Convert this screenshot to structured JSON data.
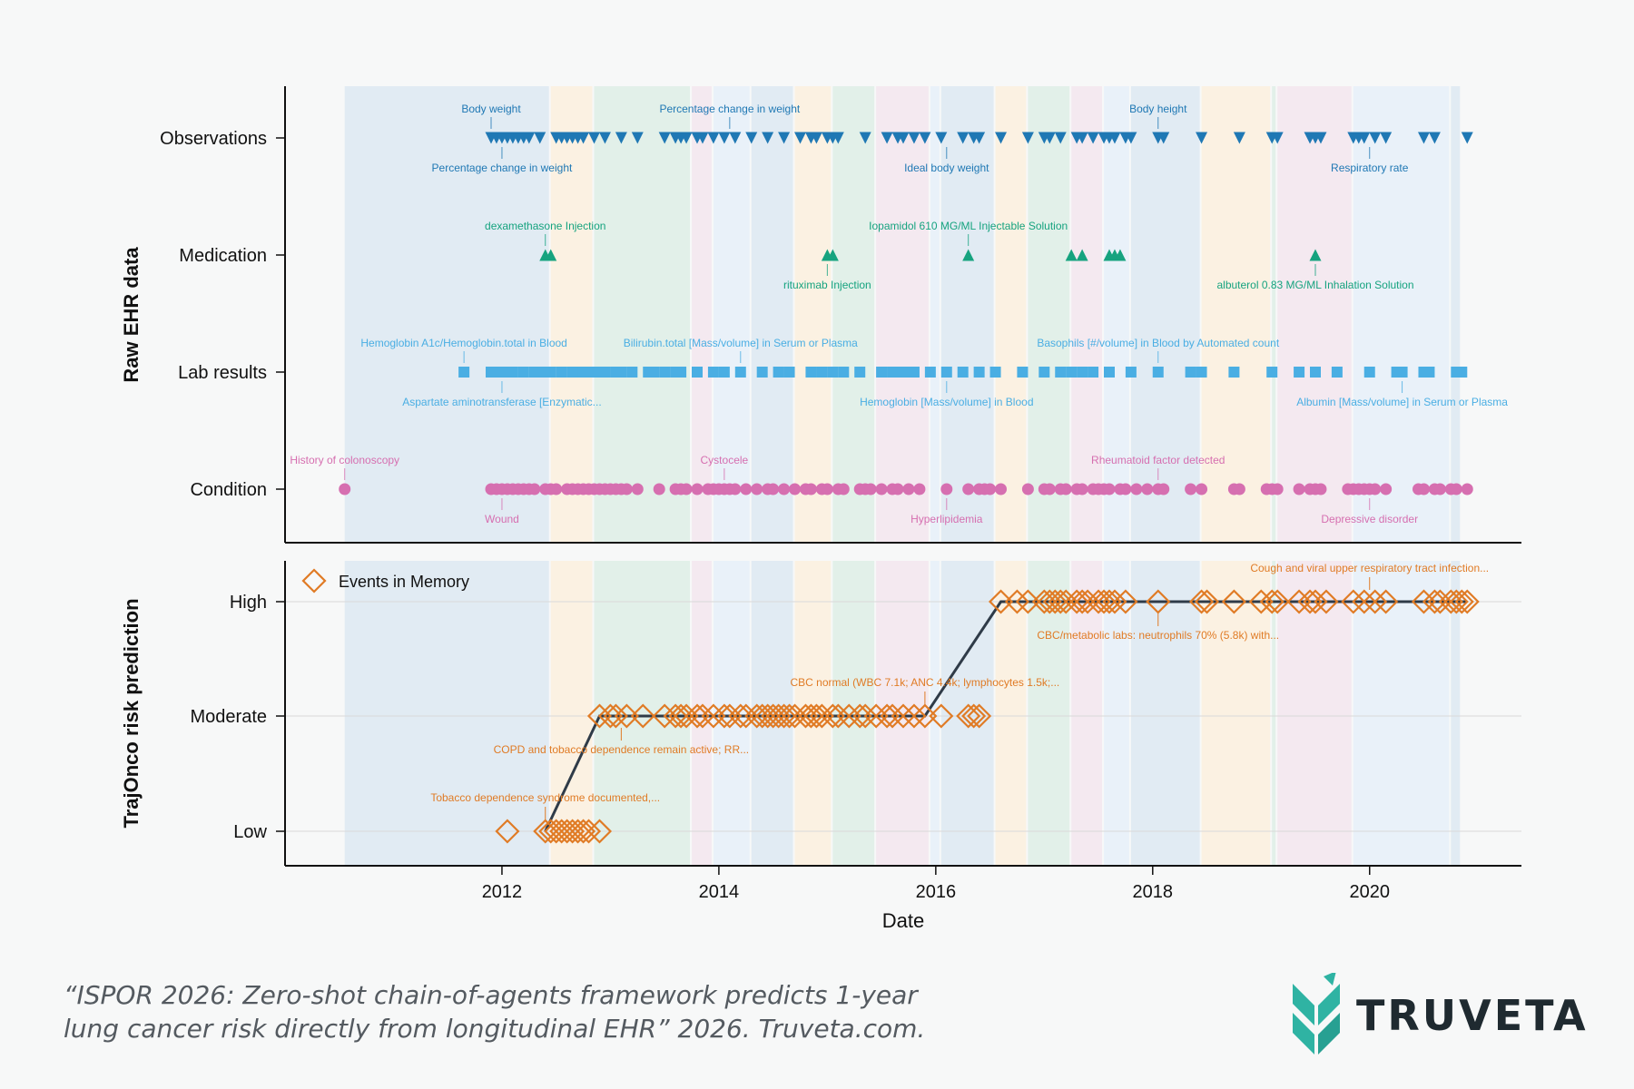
{
  "chart_data": {
    "type": "scatter",
    "xlabel": "Date",
    "x_ticks": [
      "2012",
      "2014",
      "2016",
      "2018",
      "2020"
    ],
    "xlim": [
      2010.0,
      2021.4
    ],
    "background_colors": [
      "#dde9f2",
      "#fbf0de",
      "#deefe6",
      "#f3e6ee",
      "#e6f0f9"
    ],
    "panels": [
      {
        "id": "raw",
        "ylabel": "Raw EHR data",
        "rows": [
          {
            "name": "Observations",
            "marker": "triangle-down",
            "color": "#1f78b4",
            "x": [
              2011.9,
              2011.95,
              2012.0,
              2012.05,
              2012.1,
              2012.15,
              2012.2,
              2012.25,
              2012.35,
              2012.5,
              2012.55,
              2012.6,
              2012.65,
              2012.7,
              2012.75,
              2012.85,
              2012.95,
              2013.1,
              2013.25,
              2013.5,
              2013.6,
              2013.65,
              2013.7,
              2013.8,
              2013.85,
              2013.95,
              2014.05,
              2014.15,
              2014.3,
              2014.45,
              2014.6,
              2014.75,
              2014.85,
              2014.9,
              2015.0,
              2015.05,
              2015.1,
              2015.35,
              2015.55,
              2015.65,
              2015.7,
              2015.8,
              2015.9,
              2016.05,
              2016.25,
              2016.35,
              2016.4,
              2016.6,
              2016.85,
              2017.0,
              2017.05,
              2017.15,
              2017.3,
              2017.35,
              2017.45,
              2017.55,
              2017.6,
              2017.65,
              2017.75,
              2017.8,
              2018.05,
              2018.1,
              2018.45,
              2018.8,
              2019.1,
              2019.15,
              2019.45,
              2019.5,
              2019.55,
              2019.85,
              2019.9,
              2019.95,
              2020.05,
              2020.15,
              2020.5,
              2020.6,
              2020.9
            ],
            "labels_above": [
              {
                "x": 2011.9,
                "text": "Body weight"
              },
              {
                "x": 2014.1,
                "text": "Percentage change in weight"
              },
              {
                "x": 2018.05,
                "text": "Body height"
              }
            ],
            "labels_below": [
              {
                "x": 2012.0,
                "text": "Percentage change in weight"
              },
              {
                "x": 2016.1,
                "text": "Ideal body weight"
              },
              {
                "x": 2020.0,
                "text": "Respiratory rate"
              }
            ]
          },
          {
            "name": "Medication",
            "marker": "triangle-up",
            "color": "#16a37f",
            "x": [
              2012.4,
              2012.45,
              2015.0,
              2015.05,
              2016.3,
              2017.25,
              2017.35,
              2017.6,
              2017.65,
              2017.7,
              2019.5
            ],
            "labels_above": [
              {
                "x": 2012.4,
                "text": "dexamethasone Injection"
              },
              {
                "x": 2016.3,
                "text": "Iopamidol 610 MG/ML Injectable Solution"
              }
            ],
            "labels_below": [
              {
                "x": 2015.0,
                "text": "rituximab Injection"
              },
              {
                "x": 2019.5,
                "text": "albuterol 0.83 MG/ML Inhalation Solution"
              }
            ]
          },
          {
            "name": "Lab results",
            "marker": "square",
            "color": "#4aaee3",
            "x": [
              2011.65,
              2011.9,
              2011.95,
              2012.0,
              2012.05,
              2012.1,
              2012.2,
              2012.3,
              2012.35,
              2012.4,
              2012.45,
              2012.55,
              2012.65,
              2012.7,
              2012.75,
              2012.85,
              2012.95,
              2013.05,
              2013.1,
              2013.2,
              2013.35,
              2013.4,
              2013.5,
              2013.6,
              2013.65,
              2013.8,
              2013.95,
              2014.05,
              2014.2,
              2014.4,
              2014.55,
              2014.65,
              2014.85,
              2014.95,
              2015.05,
              2015.15,
              2015.3,
              2015.5,
              2015.6,
              2015.7,
              2015.8,
              2015.95,
              2016.1,
              2016.25,
              2016.4,
              2016.55,
              2016.8,
              2017.0,
              2017.15,
              2017.25,
              2017.35,
              2017.45,
              2017.6,
              2017.8,
              2018.05,
              2018.35,
              2018.45,
              2018.75,
              2019.1,
              2019.35,
              2019.5,
              2019.7,
              2020.0,
              2020.25,
              2020.3,
              2020.5,
              2020.55,
              2020.8,
              2020.85
            ],
            "labels_above": [
              {
                "x": 2011.65,
                "text": "Hemoglobin A1c/Hemoglobin.total in Blood"
              },
              {
                "x": 2014.2,
                "text": "Bilirubin.total [Mass/volume] in Serum or Plasma"
              },
              {
                "x": 2018.05,
                "text": "Basophils [#/volume] in Blood by Automated count"
              }
            ],
            "labels_below": [
              {
                "x": 2012.0,
                "text": "Aspartate aminotransferase [Enzymatic..."
              },
              {
                "x": 2016.1,
                "text": "Hemoglobin [Mass/volume] in Blood"
              },
              {
                "x": 2020.3,
                "text": "Albumin [Mass/volume] in Serum or Plasma"
              }
            ]
          },
          {
            "name": "Condition",
            "marker": "circle",
            "color": "#d66fb0",
            "x": [
              2010.55,
              2011.9,
              2011.95,
              2012.0,
              2012.05,
              2012.1,
              2012.15,
              2012.2,
              2012.25,
              2012.3,
              2012.4,
              2012.45,
              2012.5,
              2012.6,
              2012.65,
              2012.7,
              2012.75,
              2012.8,
              2012.85,
              2012.9,
              2012.95,
              2013.0,
              2013.05,
              2013.1,
              2013.15,
              2013.25,
              2013.45,
              2013.6,
              2013.65,
              2013.7,
              2013.8,
              2013.9,
              2013.95,
              2014.0,
              2014.05,
              2014.1,
              2014.15,
              2014.25,
              2014.35,
              2014.45,
              2014.5,
              2014.6,
              2014.7,
              2014.8,
              2014.85,
              2014.95,
              2015.0,
              2015.1,
              2015.15,
              2015.3,
              2015.35,
              2015.4,
              2015.5,
              2015.6,
              2015.65,
              2015.75,
              2015.85,
              2016.1,
              2016.3,
              2016.4,
              2016.45,
              2016.5,
              2016.6,
              2016.85,
              2017.0,
              2017.05,
              2017.15,
              2017.2,
              2017.3,
              2017.35,
              2017.45,
              2017.5,
              2017.55,
              2017.6,
              2017.7,
              2017.75,
              2017.85,
              2017.95,
              2018.05,
              2018.1,
              2018.35,
              2018.45,
              2018.75,
              2018.8,
              2019.05,
              2019.1,
              2019.15,
              2019.35,
              2019.45,
              2019.5,
              2019.55,
              2019.8,
              2019.85,
              2019.9,
              2019.95,
              2020.0,
              2020.05,
              2020.15,
              2020.45,
              2020.5,
              2020.6,
              2020.65,
              2020.75,
              2020.8,
              2020.9
            ],
            "labels_above": [
              {
                "x": 2010.55,
                "text": "History of colonoscopy"
              },
              {
                "x": 2014.05,
                "text": "Cystocele"
              },
              {
                "x": 2018.05,
                "text": "Rheumatoid factor detected"
              }
            ],
            "labels_below": [
              {
                "x": 2012.0,
                "text": "Wound"
              },
              {
                "x": 2016.1,
                "text": "Hyperlipidemia"
              },
              {
                "x": 2020.0,
                "text": "Depressive disorder"
              }
            ]
          }
        ]
      },
      {
        "id": "risk",
        "ylabel": "TrajOnco risk prediction",
        "levels": [
          "Low",
          "Moderate",
          "High"
        ],
        "legend": "Events in Memory",
        "marker": "diamond-open",
        "color": "#e07b25",
        "line": [
          [
            2012.4,
            "Low"
          ],
          [
            2012.9,
            "Moderate"
          ],
          [
            2015.9,
            "Moderate"
          ],
          [
            2016.6,
            "High"
          ],
          [
            2020.9,
            "High"
          ]
        ],
        "events": [
          {
            "level": "Low",
            "x": [
              2012.05,
              2012.4,
              2012.45,
              2012.5,
              2012.55,
              2012.6,
              2012.65,
              2012.7,
              2012.75,
              2012.8,
              2012.9
            ]
          },
          {
            "level": "Moderate",
            "x": [
              2012.9,
              2013.0,
              2013.05,
              2013.15,
              2013.3,
              2013.5,
              2013.6,
              2013.65,
              2013.7,
              2013.8,
              2013.85,
              2013.95,
              2014.05,
              2014.1,
              2014.2,
              2014.25,
              2014.35,
              2014.4,
              2014.45,
              2014.5,
              2014.55,
              2014.6,
              2014.65,
              2014.7,
              2014.8,
              2014.85,
              2014.9,
              2014.95,
              2015.05,
              2015.1,
              2015.2,
              2015.3,
              2015.35,
              2015.45,
              2015.55,
              2015.6,
              2015.7,
              2015.8,
              2015.9,
              2016.05,
              2016.3,
              2016.35,
              2016.4
            ]
          },
          {
            "level": "High",
            "x": [
              2016.6,
              2016.75,
              2016.85,
              2017.0,
              2017.05,
              2017.1,
              2017.15,
              2017.2,
              2017.3,
              2017.35,
              2017.4,
              2017.5,
              2017.55,
              2017.6,
              2017.65,
              2017.75,
              2018.05,
              2018.45,
              2018.5,
              2018.75,
              2019.0,
              2019.1,
              2019.15,
              2019.35,
              2019.45,
              2019.5,
              2019.6,
              2019.85,
              2019.95,
              2020.05,
              2020.15,
              2020.5,
              2020.6,
              2020.65,
              2020.75,
              2020.8,
              2020.85,
              2020.9
            ]
          }
        ],
        "annotations": [
          {
            "x": 2012.4,
            "level": "Low",
            "side": "above",
            "text": "Tobacco dependence syndrome documented,..."
          },
          {
            "x": 2013.1,
            "level": "Moderate",
            "side": "below",
            "text": "COPD and tobacco dependence remain active; RR..."
          },
          {
            "x": 2015.9,
            "level": "Moderate",
            "side": "above",
            "text": "CBC normal (WBC 7.1k; ANC 4.4k; lymphocytes 1.5k;..."
          },
          {
            "x": 2018.05,
            "level": "High",
            "side": "below",
            "text": "CBC/metabolic labs: neutrophils 70% (5.8k) with..."
          },
          {
            "x": 2020.0,
            "level": "High",
            "side": "above",
            "text": "Cough and viral upper respiratory tract infection..."
          }
        ]
      }
    ]
  },
  "caption": {
    "line1": "“ISPOR 2026: Zero-shot chain-of-agents framework predicts 1-year",
    "line2": "lung cancer risk directly from longitudinal EHR” 2026. Truveta.com."
  },
  "brand": {
    "name": "TRUVETA",
    "color": "#2fb3a3"
  }
}
